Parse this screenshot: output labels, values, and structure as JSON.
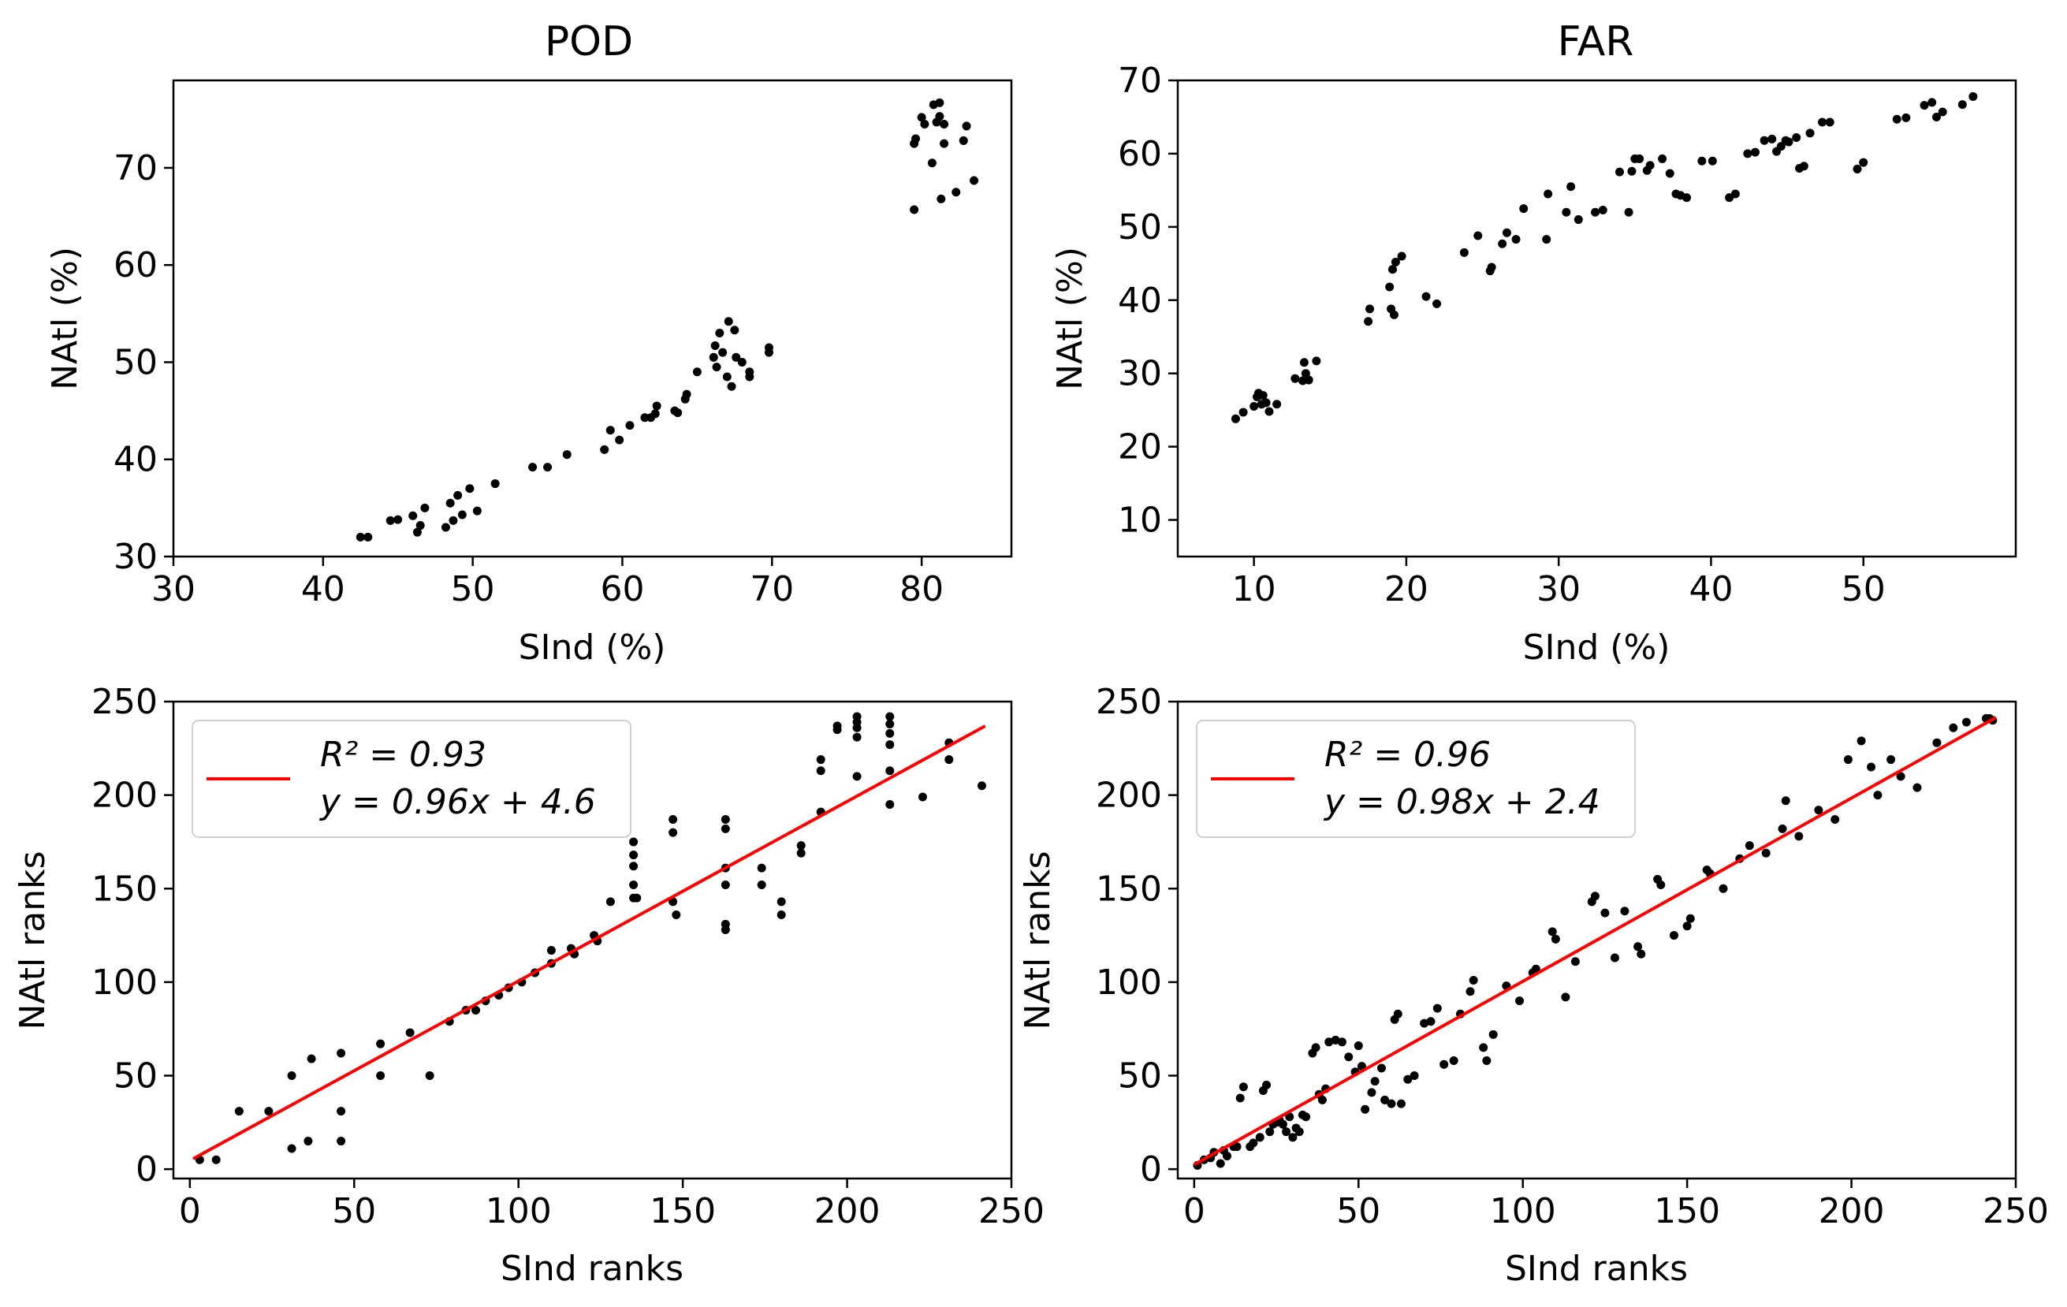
{
  "chart_data": [
    {
      "type": "scatter",
      "title": "POD",
      "xlabel": "SInd (%)",
      "ylabel": "NAtl (%)",
      "xlim": [
        30,
        86
      ],
      "ylim": [
        30,
        79
      ],
      "xticks": [
        30,
        40,
        50,
        60,
        70,
        80
      ],
      "yticks": [
        30,
        40,
        50,
        60,
        70
      ],
      "grid": false,
      "series": [
        {
          "color": "#000000",
          "x": [
            42.5,
            43.0,
            44.5,
            45.0,
            46.0,
            46.3,
            46.5,
            46.8,
            48.2,
            48.5,
            48.7,
            49.0,
            49.3,
            49.8,
            50.3,
            51.5,
            54.0,
            55.0,
            56.3,
            58.8,
            59.2,
            59.8,
            60.5,
            61.5,
            61.9,
            62.3,
            62.2,
            63.5,
            63.7,
            64.2,
            64.3,
            65.0,
            66.1,
            66.2,
            66.3,
            66.5,
            66.7,
            67.0,
            67.1,
            67.3,
            67.5,
            67.6,
            68.0,
            68.5,
            68.5,
            69.8,
            69.8,
            79.5,
            79.5,
            79.6,
            80.0,
            80.2,
            80.7,
            80.8,
            81.0,
            81.2,
            81.2,
            81.3,
            81.5,
            81.5,
            82.3,
            82.8,
            83.0,
            83.5
          ],
          "y": [
            32.0,
            32.0,
            33.7,
            33.8,
            34.2,
            32.5,
            33.2,
            35.0,
            33.0,
            35.5,
            33.7,
            36.3,
            34.3,
            37.0,
            34.7,
            37.5,
            39.2,
            39.2,
            40.5,
            41.0,
            43.0,
            42.0,
            43.5,
            44.3,
            44.3,
            45.5,
            44.7,
            45.0,
            44.8,
            46.2,
            46.7,
            49.0,
            50.5,
            51.7,
            49.5,
            53.0,
            51.0,
            48.5,
            54.2,
            47.5,
            53.3,
            50.5,
            50.0,
            48.5,
            49.0,
            51.5,
            51.0,
            65.7,
            72.5,
            73.0,
            75.2,
            74.5,
            70.5,
            76.5,
            74.7,
            76.7,
            75.3,
            66.8,
            74.5,
            72.5,
            67.5,
            72.8,
            74.3,
            68.7
          ]
        }
      ]
    },
    {
      "type": "scatter",
      "title": "FAR",
      "xlabel": "SInd (%)",
      "ylabel": "NAtl (%)",
      "xlim": [
        5,
        60
      ],
      "ylim": [
        5,
        70
      ],
      "xticks": [
        10,
        20,
        30,
        40,
        50
      ],
      "yticks": [
        10,
        20,
        30,
        40,
        50,
        60,
        70
      ],
      "grid": false,
      "series": [
        {
          "color": "#000000",
          "x": [
            8.8,
            9.3,
            10.0,
            10.2,
            10.3,
            10.5,
            10.6,
            10.8,
            11.0,
            11.5,
            12.7,
            13.2,
            13.3,
            13.4,
            13.6,
            14.1,
            17.5,
            17.6,
            18.9,
            19.0,
            19.1,
            19.2,
            19.3,
            19.7,
            21.3,
            22.0,
            23.8,
            24.7,
            25.5,
            25.6,
            26.3,
            26.6,
            27.2,
            27.7,
            29.2,
            29.3,
            30.5,
            30.8,
            31.3,
            32.4,
            32.9,
            34.0,
            34.6,
            34.8,
            35.0,
            35.3,
            35.8,
            36.0,
            36.8,
            37.3,
            37.7,
            38.0,
            38.4,
            39.4,
            40.1,
            41.2,
            41.6,
            42.4,
            42.9,
            43.5,
            44.0,
            44.3,
            44.6,
            44.9,
            45.1,
            45.6,
            45.8,
            46.1,
            46.5,
            47.3,
            47.8,
            49.6,
            50.0,
            52.2,
            52.8,
            54.0,
            54.5,
            54.8,
            55.2,
            56.5,
            57.2
          ],
          "y": [
            23.8,
            24.7,
            25.5,
            26.8,
            27.3,
            25.8,
            27.0,
            26.0,
            24.8,
            25.8,
            29.3,
            29.0,
            31.5,
            30.0,
            29.1,
            31.7,
            37.1,
            38.8,
            41.8,
            38.8,
            44.2,
            38.0,
            45.2,
            46.0,
            40.5,
            39.5,
            46.5,
            48.8,
            44.0,
            44.5,
            47.7,
            49.2,
            48.3,
            52.5,
            48.3,
            54.5,
            52.0,
            55.5,
            51.0,
            52.0,
            52.3,
            57.5,
            52.0,
            57.6,
            59.3,
            59.3,
            57.7,
            58.4,
            59.3,
            57.3,
            54.5,
            54.3,
            54.0,
            59.0,
            59.0,
            54.0,
            54.5,
            60.0,
            60.2,
            61.8,
            62.0,
            60.3,
            61.0,
            61.8,
            61.6,
            62.2,
            58.0,
            58.3,
            62.8,
            64.3,
            64.3,
            57.9,
            58.8,
            64.7,
            64.9,
            66.6,
            67.0,
            65.0,
            65.7,
            66.7,
            67.8
          ]
        }
      ]
    },
    {
      "type": "scatter",
      "xlabel": "SInd ranks",
      "ylabel": "NAtl ranks",
      "xlim": [
        -5,
        250
      ],
      "ylim": [
        -5,
        250
      ],
      "xticks": [
        0,
        50,
        100,
        150,
        200,
        250
      ],
      "yticks": [
        0,
        50,
        100,
        150,
        200,
        250
      ],
      "grid": false,
      "legend_position": "upper-left",
      "legend": [
        "$R^2 = 0.93$",
        "$y = 0.96x + 4.6$"
      ],
      "legend_lines": {
        "r2": "R² = 0.93",
        "eq": "y = 0.96x + 4.6"
      },
      "fit": {
        "slope": 0.96,
        "intercept": 4.6,
        "r2": 0.93,
        "x_range": [
          1,
          242
        ],
        "color": "#ff0000"
      },
      "series": [
        {
          "color": "#000000",
          "x": [
            3,
            8,
            15,
            24,
            31,
            31,
            36,
            37,
            46,
            46,
            46,
            58,
            58,
            67,
            73,
            79,
            84,
            87,
            90,
            94,
            97,
            101,
            105,
            110,
            110,
            116,
            117,
            123,
            124,
            128,
            135,
            135,
            135,
            135,
            135,
            136,
            147,
            147,
            147,
            148,
            163,
            163,
            163,
            163,
            163,
            163,
            174,
            174,
            180,
            180,
            186,
            186,
            192,
            192,
            192,
            197,
            197,
            203,
            203,
            203,
            203,
            203,
            213,
            213,
            213,
            213,
            213,
            213,
            223,
            231,
            231,
            241
          ],
          "y": [
            5,
            5,
            31,
            31,
            50,
            11,
            15,
            59,
            62,
            31,
            15,
            67,
            50,
            73,
            50,
            79,
            85,
            85,
            90,
            93,
            97,
            100,
            105,
            110,
            117,
            118,
            115,
            125,
            122,
            143,
            175,
            168,
            162,
            152,
            145,
            145,
            187,
            180,
            143,
            136,
            187,
            182,
            161,
            152,
            131,
            128,
            161,
            152,
            143,
            136,
            173,
            169,
            219,
            213,
            191,
            237,
            235,
            242,
            239,
            236,
            231,
            210,
            242,
            238,
            233,
            227,
            213,
            195,
            199,
            228,
            219,
            205
          ]
        }
      ]
    },
    {
      "type": "scatter",
      "xlabel": "SInd ranks",
      "ylabel": "NAtl ranks",
      "xlim": [
        -5,
        250
      ],
      "ylim": [
        -5,
        250
      ],
      "xticks": [
        0,
        50,
        100,
        150,
        200,
        250
      ],
      "yticks": [
        0,
        50,
        100,
        150,
        200,
        250
      ],
      "grid": false,
      "legend_position": "upper-left",
      "legend": [
        "$R^2 = 0.96$",
        "$y = 0.98x + 2.4$"
      ],
      "legend_lines": {
        "r2": "R² = 0.96",
        "eq": "y = 0.98x + 2.4"
      },
      "fit": {
        "slope": 0.98,
        "intercept": 2.4,
        "r2": 0.96,
        "x_range": [
          0,
          244
        ],
        "color": "#ff0000"
      },
      "series": [
        {
          "color": "#000000",
          "x": [
            1,
            3,
            5,
            6,
            8,
            9,
            10,
            12,
            13,
            14,
            15,
            17,
            18,
            20,
            21,
            22,
            23,
            24,
            25,
            26,
            27,
            28,
            29,
            30,
            31,
            32,
            33,
            34,
            36,
            37,
            38,
            39,
            40,
            41,
            43,
            45,
            47,
            49,
            50,
            51,
            52,
            54,
            55,
            57,
            58,
            60,
            61,
            62,
            63,
            65,
            67,
            70,
            72,
            74,
            76,
            79,
            81,
            84,
            85,
            88,
            89,
            91,
            95,
            99,
            103,
            104,
            109,
            110,
            113,
            116,
            121,
            122,
            125,
            128,
            131,
            135,
            136,
            141,
            142,
            146,
            150,
            151,
            156,
            157,
            161,
            166,
            169,
            174,
            179,
            180,
            184,
            190,
            195,
            199,
            203,
            206,
            208,
            212,
            215,
            220,
            226,
            231,
            235,
            241,
            242,
            243
          ],
          "y": [
            2,
            5,
            6,
            9,
            3,
            10,
            7,
            12,
            12,
            38,
            44,
            12,
            14,
            17,
            42,
            45,
            20,
            24,
            25,
            26,
            24,
            20,
            28,
            17,
            22,
            20,
            29,
            28,
            62,
            65,
            40,
            37,
            43,
            68,
            69,
            68,
            60,
            52,
            66,
            55,
            32,
            41,
            47,
            54,
            37,
            35,
            80,
            83,
            35,
            48,
            50,
            78,
            79,
            86,
            56,
            58,
            83,
            95,
            101,
            65,
            58,
            72,
            98,
            90,
            105,
            107,
            127,
            123,
            92,
            111,
            143,
            146,
            137,
            113,
            138,
            119,
            115,
            155,
            152,
            125,
            130,
            134,
            160,
            158,
            150,
            166,
            173,
            169,
            182,
            197,
            178,
            192,
            187,
            219,
            229,
            215,
            200,
            219,
            210,
            204,
            228,
            236,
            239,
            241,
            241,
            240
          ]
        }
      ]
    }
  ]
}
